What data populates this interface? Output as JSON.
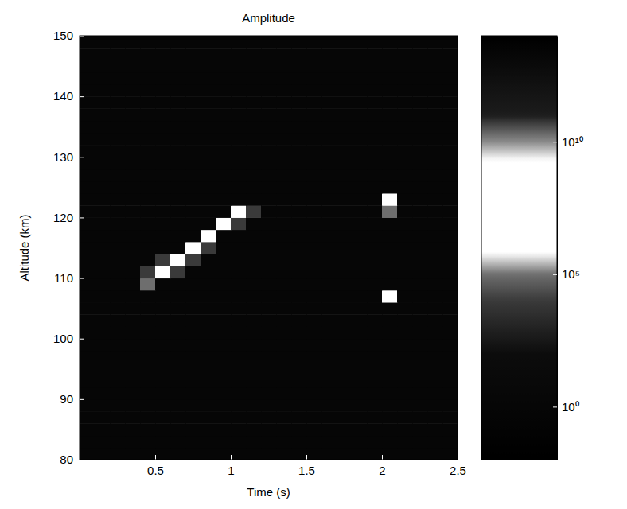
{
  "chart_data": {
    "type": "heatmap",
    "title": "Amplitude",
    "x_label": "Time (s)",
    "y_label": "Altitude (km)",
    "xlim": [
      0,
      2.5
    ],
    "xticks": [
      0.5,
      1,
      1.5,
      2,
      2.5
    ],
    "ylim": [
      80,
      150
    ],
    "yticks": [
      80,
      90,
      100,
      110,
      120,
      130,
      140,
      150
    ],
    "x": [
      0.05,
      0.15,
      0.25,
      0.35,
      0.45,
      0.55,
      0.65,
      0.75,
      0.85,
      0.95,
      1.05,
      1.15,
      1.25,
      1.35,
      1.45,
      1.55,
      1.65,
      1.75,
      1.85,
      1.95,
      2.05,
      2.15,
      2.25,
      2.35,
      2.45
    ],
    "y": [
      81,
      83,
      85,
      87,
      89,
      91,
      93,
      95,
      97,
      99,
      101,
      103,
      105,
      107,
      109,
      111,
      113,
      115,
      117,
      119,
      121,
      123,
      125,
      127,
      129,
      131,
      133,
      135,
      137,
      139,
      141,
      143,
      145,
      147,
      149
    ],
    "z": [
      [
        1,
        1,
        1,
        1,
        1,
        1,
        1,
        1,
        1,
        1,
        1,
        1,
        1,
        1,
        1,
        1,
        1,
        1,
        1,
        1,
        1,
        1,
        1,
        1,
        1
      ],
      [
        1,
        1,
        1,
        1,
        1,
        1,
        1,
        1,
        1,
        1,
        1,
        1,
        1,
        1,
        1,
        1,
        1,
        1,
        1,
        1,
        1,
        1,
        1,
        1,
        1
      ],
      [
        1,
        1,
        1,
        1,
        1,
        1,
        1,
        1,
        1,
        1,
        1,
        1,
        1,
        1,
        1,
        1,
        1,
        1,
        1,
        1,
        1,
        1,
        1,
        1,
        1
      ],
      [
        1,
        1,
        1,
        1,
        1,
        1,
        1,
        1,
        1,
        1,
        1,
        1,
        1,
        1,
        1,
        1,
        1,
        1,
        1,
        1,
        1,
        1,
        1,
        1,
        1
      ],
      [
        1,
        1,
        1,
        1,
        1,
        1,
        1,
        1,
        1,
        1,
        1,
        1,
        1,
        1,
        1,
        1,
        1,
        1,
        1,
        1,
        1,
        1,
        1,
        1,
        1
      ],
      [
        1,
        1,
        1,
        1,
        1,
        1,
        1,
        1,
        1,
        1,
        1,
        1,
        1,
        1,
        1,
        1,
        1,
        1,
        1,
        1,
        1,
        1,
        1,
        1,
        1
      ],
      [
        1,
        1,
        1,
        1,
        1,
        1,
        1,
        1,
        1,
        1,
        1,
        1,
        1,
        1,
        1,
        1,
        1,
        1,
        1,
        1,
        1,
        1,
        1,
        1,
        1
      ],
      [
        1,
        1,
        1,
        1,
        1,
        1,
        1,
        1,
        1,
        1,
        1,
        1,
        1,
        1,
        1,
        1,
        1,
        1,
        1,
        1,
        1,
        1,
        1,
        1,
        1
      ],
      [
        1,
        1,
        1,
        1,
        1,
        1,
        1,
        1,
        1,
        1,
        1,
        1,
        1,
        1,
        1,
        1,
        1,
        1,
        1,
        1,
        1,
        1,
        1,
        1,
        1
      ],
      [
        1,
        1,
        1,
        1,
        1,
        1,
        1,
        1,
        1,
        1,
        1,
        1,
        1,
        1,
        1,
        1,
        1,
        1,
        1,
        1,
        1,
        1,
        1,
        1,
        1
      ],
      [
        1,
        1,
        1,
        1,
        1,
        1,
        1,
        1,
        1,
        1,
        1,
        1,
        1,
        1,
        1,
        1,
        1,
        1,
        1,
        1,
        1,
        1,
        1,
        1,
        1
      ],
      [
        1,
        1,
        1,
        1,
        1,
        1,
        1,
        1,
        1,
        1,
        1,
        1,
        1,
        1,
        1,
        1,
        1,
        1,
        1,
        1,
        1,
        1,
        1,
        1,
        1
      ],
      [
        1,
        1,
        1,
        1,
        1,
        1,
        1,
        1,
        1,
        1,
        1,
        1,
        1,
        1,
        1,
        1,
        1,
        1,
        1,
        1,
        1,
        1,
        1,
        1,
        1
      ],
      [
        1,
        1,
        1,
        1,
        1,
        1,
        1,
        1,
        1,
        1,
        1,
        1,
        1,
        1,
        1,
        1,
        1,
        1,
        1,
        1,
        1000000,
        1,
        1,
        1,
        1
      ],
      [
        1,
        1,
        1,
        1,
        100000,
        1,
        1,
        1,
        1,
        1,
        1,
        1,
        1,
        1,
        1,
        1,
        1,
        1,
        1,
        1,
        1,
        1,
        1,
        1,
        1
      ],
      [
        1,
        1,
        1,
        1,
        10000,
        100000000,
        10000,
        1,
        1,
        1,
        1,
        1,
        1,
        1,
        1,
        1,
        1,
        1,
        1,
        1,
        1,
        1,
        1,
        1,
        1
      ],
      [
        1,
        1,
        1,
        1,
        1,
        10000,
        100000000,
        10000,
        1,
        1,
        1,
        1,
        1,
        1,
        1,
        1,
        1,
        1,
        1,
        1,
        1,
        1,
        1,
        1,
        1
      ],
      [
        1,
        1,
        1,
        1,
        1,
        1,
        1,
        100000000,
        10000,
        1,
        1,
        1,
        1,
        1,
        1,
        1,
        1,
        1,
        1,
        1,
        1,
        1,
        1,
        1,
        1
      ],
      [
        1,
        1,
        1,
        1,
        1,
        1,
        1,
        1,
        100000000,
        1,
        1,
        1,
        1,
        1,
        1,
        1,
        1,
        1,
        1,
        1,
        1,
        1,
        1,
        1,
        1
      ],
      [
        1,
        1,
        1,
        1,
        1,
        1,
        1,
        1,
        1,
        100000000,
        10000,
        1,
        1,
        1,
        1,
        1,
        1,
        1,
        1,
        1,
        1,
        1,
        1,
        1,
        1
      ],
      [
        1,
        1,
        1,
        1,
        1,
        1,
        1,
        1,
        1,
        1,
        100000000,
        10000,
        1,
        1,
        1,
        1,
        1,
        1,
        1,
        1,
        100000,
        1,
        1,
        1,
        1
      ],
      [
        1,
        1,
        1,
        1,
        1,
        1,
        1,
        1,
        1,
        1,
        1,
        1,
        1,
        1,
        1,
        1,
        1,
        1,
        1,
        1,
        10000000,
        1,
        1,
        1,
        1
      ],
      [
        1,
        1,
        1,
        1,
        1,
        1,
        1,
        1,
        1,
        1,
        1,
        1,
        1,
        1,
        1,
        1,
        1,
        1,
        1,
        1,
        1,
        1,
        1,
        1,
        1
      ],
      [
        1,
        1,
        1,
        1,
        1,
        1,
        1,
        1,
        1,
        1,
        1,
        1,
        1,
        1,
        1,
        1,
        1,
        1,
        1,
        1,
        1,
        1,
        1,
        1,
        1
      ],
      [
        1,
        1,
        1,
        1,
        1,
        1,
        1,
        1,
        1,
        1,
        1,
        1,
        1,
        1,
        1,
        1,
        1,
        1,
        1,
        1,
        1,
        1,
        1,
        1,
        1
      ],
      [
        1,
        1,
        1,
        1,
        1,
        1,
        1,
        1,
        1,
        1,
        1,
        1,
        1,
        1,
        1,
        1,
        1,
        1,
        1,
        1,
        1,
        1,
        1,
        1,
        1
      ],
      [
        1,
        1,
        1,
        1,
        1,
        1,
        1,
        1,
        1,
        1,
        1,
        1,
        1,
        1,
        1,
        1,
        1,
        1,
        1,
        1,
        1,
        1,
        1,
        1,
        1
      ],
      [
        1,
        1,
        1,
        1,
        1,
        1,
        1,
        1,
        1,
        1,
        1,
        1,
        1,
        1,
        1,
        1,
        1,
        1,
        1,
        1,
        1,
        1,
        1,
        1,
        1
      ],
      [
        1,
        1,
        1,
        1,
        1,
        1,
        1,
        1,
        1,
        1,
        1,
        1,
        1,
        1,
        1,
        1,
        1,
        1,
        1,
        1,
        1,
        1,
        1,
        1,
        1
      ],
      [
        1,
        1,
        1,
        1,
        1,
        1,
        1,
        1,
        1,
        1,
        1,
        1,
        1,
        1,
        1,
        1,
        1,
        1,
        1,
        1,
        1,
        1,
        1,
        1,
        1
      ],
      [
        1,
        1,
        1,
        1,
        1,
        1,
        1,
        1,
        1,
        1,
        1,
        1,
        1,
        1,
        1,
        1,
        1,
        1,
        1,
        1,
        1,
        1,
        1,
        1,
        1
      ],
      [
        1,
        1,
        1,
        1,
        1,
        1,
        1,
        1,
        1,
        1,
        1,
        1,
        1,
        1,
        1,
        1,
        1,
        1,
        1,
        1,
        1,
        1,
        1,
        1,
        1
      ],
      [
        1,
        1,
        1,
        1,
        1,
        1,
        1,
        1,
        1,
        1,
        1,
        1,
        1,
        1,
        1,
        1,
        1,
        1,
        1,
        1,
        1,
        1,
        1,
        1,
        1
      ],
      [
        1,
        1,
        1,
        1,
        1,
        1,
        1,
        1,
        1,
        1,
        1,
        1,
        1,
        1,
        1,
        1,
        1,
        1,
        1,
        1,
        1,
        1,
        1,
        1,
        1
      ],
      [
        1,
        1,
        1,
        1,
        1,
        1,
        1,
        1,
        1,
        1,
        1,
        1,
        1,
        1,
        1,
        1,
        1,
        1,
        1,
        1,
        1,
        1,
        1,
        1,
        1
      ]
    ],
    "colorbar": {
      "lim": [
        0.01,
        100000000000000.0
      ],
      "ticks": [
        {
          "value": 1,
          "label": "10⁰"
        },
        {
          "value": 100000,
          "label": "10⁵"
        },
        {
          "value": 10000000000,
          "label": "10¹⁰"
        }
      ]
    }
  }
}
